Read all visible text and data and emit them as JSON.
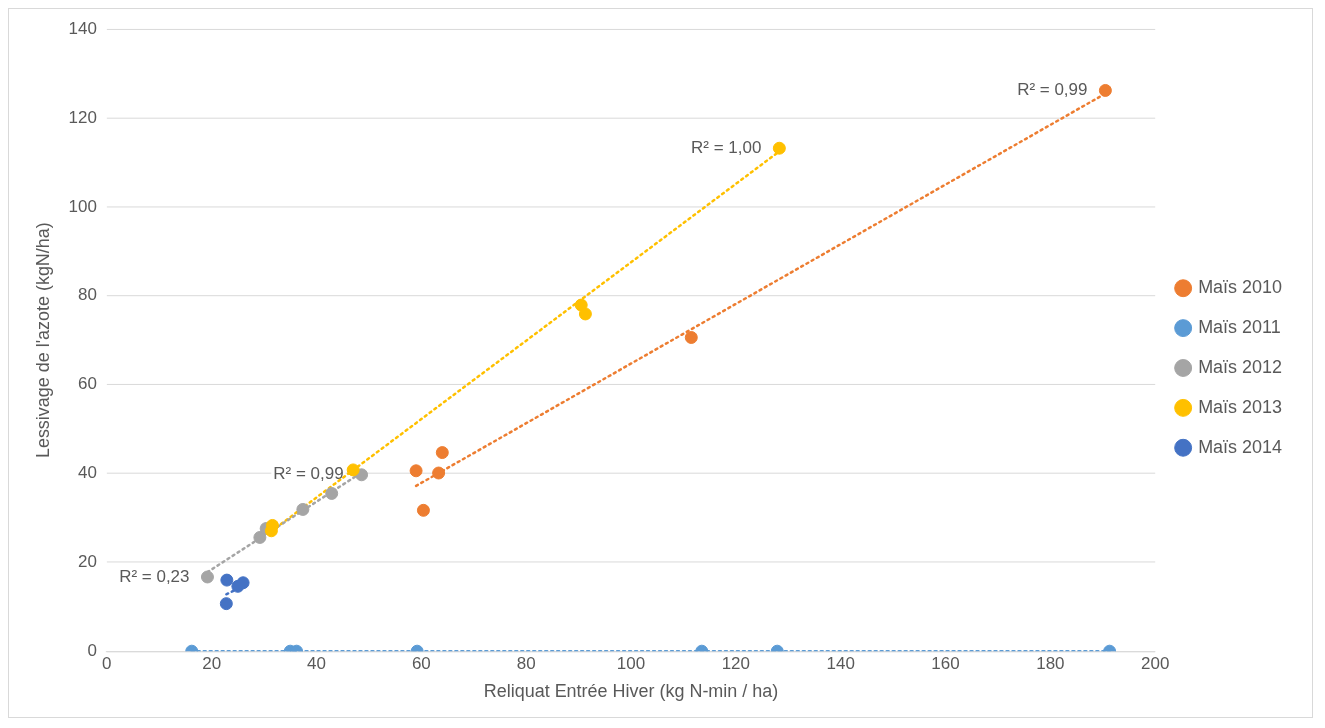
{
  "chart_data": {
    "type": "scatter",
    "xlabel": "Reliquat Entrée Hiver (kg N-min / ha)",
    "ylabel": "Lessivage de l'azote (kgN/ha)",
    "xlim": [
      0,
      200
    ],
    "xticks": [
      0,
      20,
      40,
      60,
      80,
      100,
      120,
      140,
      160,
      180,
      200
    ],
    "ylim": [
      0,
      140
    ],
    "yticks": [
      0,
      20,
      40,
      60,
      80,
      100,
      120,
      140
    ],
    "grid": "y",
    "legend": "right",
    "series": [
      {
        "name": "Maïs 2010",
        "marker": "circle",
        "color": "#ed7d31",
        "x": [
          59,
          60.4,
          63.3,
          64,
          111.5,
          190.5
        ],
        "values": [
          40.6,
          31.7,
          40.1,
          44.7,
          70.6,
          126.2
        ]
      },
      {
        "name": "Maïs 2011",
        "marker": "circle",
        "color": "#5b9bd5",
        "x": [
          16.2,
          35,
          36.2,
          59.2,
          113.5,
          127.9,
          191.3
        ],
        "values": [
          0,
          0,
          0,
          0,
          0,
          0,
          0
        ]
      },
      {
        "name": "Maïs 2012",
        "marker": "circle",
        "color": "#a5a5a5",
        "x": [
          19.2,
          29.2,
          30.4,
          37.4,
          42.9,
          48.6
        ],
        "values": [
          16.7,
          25.6,
          27.6,
          31.9,
          35.5,
          39.7
        ]
      },
      {
        "name": "Maïs 2013",
        "marker": "circle",
        "color": "#ffc000",
        "x": [
          31.4,
          31.6,
          47,
          90.5,
          91.3,
          128.3
        ],
        "values": [
          27.1,
          28.3,
          40.8,
          77.9,
          75.9,
          113.2
        ]
      },
      {
        "name": "Maïs 2014",
        "marker": "circle",
        "color": "#4472c4",
        "x": [
          22.8,
          22.9,
          25,
          26
        ],
        "values": [
          10.7,
          16,
          14.6,
          15.4
        ]
      },
      {
        "type": "line",
        "line_style": "dotted",
        "color": "#ed7d31",
        "x": [
          59,
          190.5
        ],
        "values": [
          37.2,
          125.5
        ]
      },
      {
        "type": "line",
        "line_style": "dotted",
        "color": "#5b9bd5",
        "x": [
          16.2,
          191.3
        ],
        "values": [
          0,
          0
        ]
      },
      {
        "type": "line",
        "line_style": "dotted",
        "color": "#a5a5a5",
        "x": [
          19.2,
          48.6
        ],
        "values": [
          17.8,
          40.2
        ]
      },
      {
        "type": "line",
        "line_style": "dotted",
        "color": "#ffc000",
        "x": [
          31.4,
          128.3
        ],
        "values": [
          27,
          112.5
        ]
      },
      {
        "type": "line",
        "line_style": "dotted",
        "color": "#4472c4",
        "x": [
          22.8,
          26
        ],
        "values": [
          12.8,
          14.6
        ]
      }
    ],
    "annotations": [
      {
        "text": "R² = 0,99",
        "x": 190.5,
        "y": 126.2
      },
      {
        "text": "R² = 1,00",
        "x": 128.3,
        "y": 113.2
      },
      {
        "text": "R² = 0,99",
        "x": 48.6,
        "y": 39.7
      },
      {
        "text": "R² = 0,23",
        "x": 19.2,
        "y": 16.7
      }
    ]
  }
}
